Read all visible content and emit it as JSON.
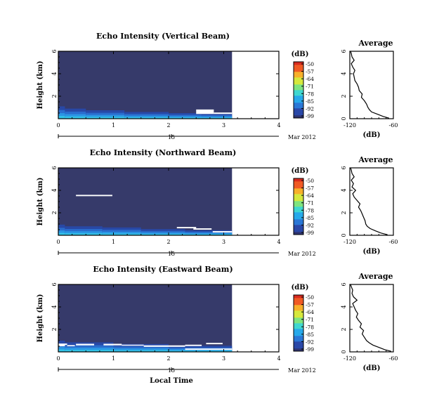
{
  "chart_data": [
    {
      "type": "heatmap",
      "title": "Echo Intensity (Vertical Beam)",
      "ylabel": "Height (km)",
      "ylim": [
        0,
        6
      ],
      "yticks": [
        2,
        4,
        6
      ],
      "xlim": [
        0,
        4
      ],
      "xticks": [
        0,
        1,
        2,
        3,
        4
      ],
      "data_end_x": 3.15,
      "date_day": "15",
      "date_label": "Mar 2012",
      "colorbar": {
        "label": "(dB)",
        "ticks": [
          -50,
          -57,
          -64,
          -71,
          -78,
          -85,
          -92,
          -99
        ],
        "range": [
          -99,
          -50
        ]
      },
      "low_level_echo": [
        {
          "x0": 0.0,
          "x1": 0.12,
          "top": 1.1
        },
        {
          "x0": 0.12,
          "x1": 0.5,
          "top": 0.9
        },
        {
          "x0": 0.5,
          "x1": 1.2,
          "top": 0.75
        },
        {
          "x0": 1.2,
          "x1": 2.0,
          "top": 0.6
        },
        {
          "x0": 2.0,
          "x1": 2.6,
          "top": 0.5
        },
        {
          "x0": 2.6,
          "x1": 3.15,
          "top": 0.45
        }
      ],
      "gaps": [
        {
          "x0": 2.5,
          "x1": 2.82,
          "y0": 0.42,
          "y1": 0.82
        },
        {
          "x0": 2.82,
          "x1": 3.15,
          "y0": 0.42,
          "y1": 0.55
        }
      ],
      "average": {
        "title": "Average",
        "xlabel": "(dB)",
        "xlim": [
          -120,
          -60
        ],
        "xticks": [
          -120,
          -60
        ],
        "ylim": [
          0,
          6
        ],
        "yticks": [
          0,
          2,
          4,
          6
        ],
        "profile": {
          "height": [
            0.05,
            0.2,
            0.4,
            0.6,
            0.8,
            1.0,
            1.3,
            1.6,
            1.9,
            2.2,
            2.5,
            2.8,
            3.1,
            3.4,
            3.7,
            4.0,
            4.3,
            4.6,
            4.9,
            5.2,
            5.5,
            5.8,
            6.0
          ],
          "db": [
            -66,
            -74,
            -82,
            -90,
            -93,
            -95,
            -97,
            -100,
            -104,
            -103,
            -107,
            -108,
            -110,
            -113,
            -114,
            -115,
            -113,
            -116,
            -118,
            -114,
            -117,
            -118,
            -119
          ]
        }
      }
    },
    {
      "type": "heatmap",
      "title": "Echo Intensity (Northward Beam)",
      "ylabel": "Height (km)",
      "ylim": [
        0,
        6
      ],
      "yticks": [
        2,
        4,
        6
      ],
      "xlim": [
        0,
        4
      ],
      "xticks": [
        0,
        1,
        2,
        3,
        4
      ],
      "data_end_x": 3.15,
      "date_day": "15",
      "date_label": "Mar 2012",
      "colorbar": {
        "label": "(dB)",
        "ticks": [
          -50,
          -57,
          -64,
          -71,
          -78,
          -85,
          -92,
          -99
        ],
        "range": [
          -99,
          -50
        ]
      },
      "low_level_echo": [
        {
          "x0": 0.0,
          "x1": 0.12,
          "top": 0.95
        },
        {
          "x0": 0.12,
          "x1": 0.8,
          "top": 0.8
        },
        {
          "x0": 0.8,
          "x1": 1.5,
          "top": 0.7
        },
        {
          "x0": 1.5,
          "x1": 2.3,
          "top": 0.55
        },
        {
          "x0": 2.3,
          "x1": 3.15,
          "top": 0.45
        }
      ],
      "gaps": [
        {
          "x0": 0.32,
          "x1": 0.98,
          "y0": 3.48,
          "y1": 3.6
        },
        {
          "x0": 2.15,
          "x1": 2.5,
          "y0": 0.62,
          "y1": 0.74
        },
        {
          "x0": 2.45,
          "x1": 2.78,
          "y0": 0.5,
          "y1": 0.62
        },
        {
          "x0": 2.8,
          "x1": 3.15,
          "y0": 0.25,
          "y1": 0.37
        }
      ],
      "average": {
        "title": "Average",
        "xlabel": "(dB)",
        "xlim": [
          -120,
          -60
        ],
        "xticks": [
          -120,
          -60
        ],
        "ylim": [
          0,
          6
        ],
        "yticks": [
          0,
          2,
          4,
          6
        ],
        "profile": {
          "height": [
            0.05,
            0.2,
            0.4,
            0.6,
            0.8,
            1.0,
            1.3,
            1.6,
            1.9,
            2.2,
            2.5,
            2.8,
            3.1,
            3.4,
            3.7,
            4.0,
            4.3,
            4.6,
            4.9,
            5.2,
            5.5,
            5.8,
            6.0
          ],
          "db": [
            -68,
            -77,
            -85,
            -92,
            -96,
            -98,
            -99,
            -101,
            -103,
            -105,
            -108,
            -106,
            -110,
            -114,
            -116,
            -112,
            -117,
            -115,
            -118,
            -114,
            -117,
            -118,
            -119
          ]
        }
      }
    },
    {
      "type": "heatmap",
      "title": "Echo Intensity (Eastward Beam)",
      "ylabel": "Height (km)",
      "xlabel": "Local Time",
      "ylim": [
        0,
        6
      ],
      "yticks": [
        2,
        4,
        6
      ],
      "xlim": [
        0,
        4
      ],
      "xticks": [
        0,
        1,
        2,
        3,
        4
      ],
      "data_end_x": 3.15,
      "date_day": "15",
      "date_label": "Mar 2012",
      "colorbar": {
        "label": "(dB)",
        "ticks": [
          -50,
          -57,
          -64,
          -71,
          -78,
          -85,
          -92,
          -99
        ],
        "range": [
          -99,
          -50
        ]
      },
      "low_level_echo": [
        {
          "x0": 0.0,
          "x1": 0.12,
          "top": 1.0
        },
        {
          "x0": 0.12,
          "x1": 1.0,
          "top": 0.85
        },
        {
          "x0": 1.0,
          "x1": 2.0,
          "top": 0.7
        },
        {
          "x0": 2.0,
          "x1": 3.15,
          "top": 0.55
        }
      ],
      "gaps": [
        {
          "x0": 0.0,
          "x1": 0.16,
          "y0": 0.62,
          "y1": 0.74
        },
        {
          "x0": 0.0,
          "x1": 0.12,
          "y0": 0.5,
          "y1": 0.62
        },
        {
          "x0": 0.16,
          "x1": 0.3,
          "y0": 0.5,
          "y1": 0.6
        },
        {
          "x0": 0.32,
          "x1": 0.65,
          "y0": 0.58,
          "y1": 0.72
        },
        {
          "x0": 0.82,
          "x1": 1.15,
          "y0": 0.58,
          "y1": 0.72
        },
        {
          "x0": 1.15,
          "x1": 1.55,
          "y0": 0.55,
          "y1": 0.64
        },
        {
          "x0": 1.55,
          "x1": 2.3,
          "y0": 0.45,
          "y1": 0.58
        },
        {
          "x0": 2.3,
          "x1": 2.6,
          "y0": 0.52,
          "y1": 0.64
        },
        {
          "x0": 2.68,
          "x1": 2.98,
          "y0": 0.68,
          "y1": 0.8
        },
        {
          "x0": 2.3,
          "x1": 3.15,
          "y0": 0.18,
          "y1": 0.3
        }
      ],
      "average": {
        "title": "Average",
        "xlabel": "(dB)",
        "xlim": [
          -120,
          -60
        ],
        "xticks": [
          -120,
          -60
        ],
        "ylim": [
          0,
          6
        ],
        "yticks": [
          0,
          2,
          4,
          6
        ],
        "profile": {
          "height": [
            0.05,
            0.2,
            0.4,
            0.6,
            0.8,
            1.0,
            1.3,
            1.6,
            1.9,
            2.2,
            2.5,
            2.8,
            3.1,
            3.4,
            3.7,
            4.0,
            4.3,
            4.6,
            4.9,
            5.2,
            5.5,
            5.8,
            6.0
          ],
          "db": [
            -63,
            -72,
            -80,
            -88,
            -93,
            -97,
            -100,
            -103,
            -101,
            -106,
            -104,
            -108,
            -111,
            -109,
            -112,
            -114,
            -116,
            -110,
            -115,
            -117,
            -116,
            -118,
            -119
          ]
        }
      }
    }
  ]
}
